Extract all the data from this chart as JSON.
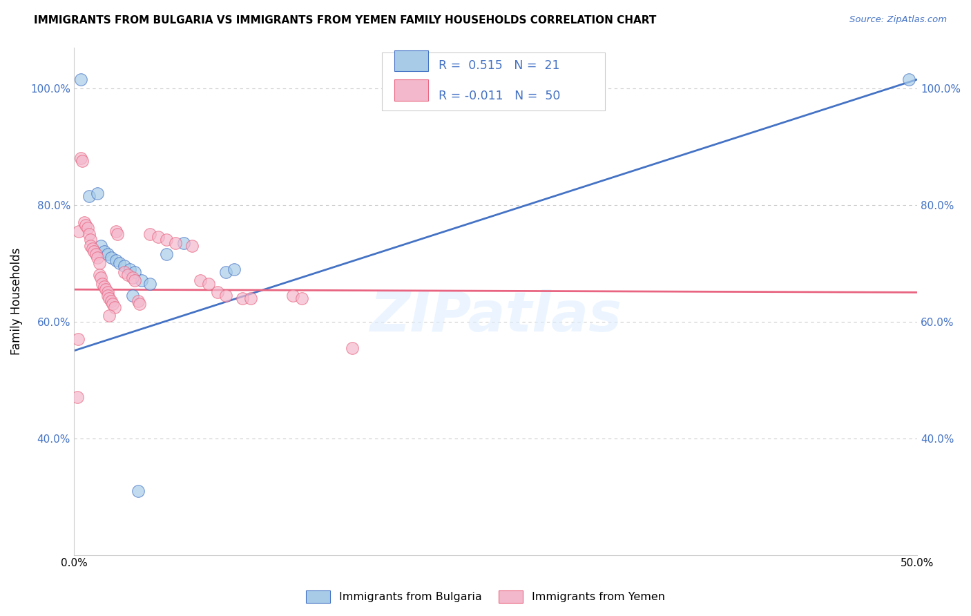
{
  "title": "IMMIGRANTS FROM BULGARIA VS IMMIGRANTS FROM YEMEN FAMILY HOUSEHOLDS CORRELATION CHART",
  "source": "Source: ZipAtlas.com",
  "ylabel": "Family Households",
  "xlim": [
    0.0,
    50.0
  ],
  "ylim": [
    20.0,
    107.0
  ],
  "yticks": [
    40.0,
    60.0,
    80.0,
    100.0
  ],
  "ytick_labels": [
    "40.0%",
    "60.0%",
    "80.0%",
    "100.0%"
  ],
  "xticks": [
    0.0,
    10.0,
    20.0,
    30.0,
    40.0,
    50.0
  ],
  "xtick_labels": [
    "0.0%",
    "",
    "",
    "",
    "",
    "50.0%"
  ],
  "color_bulgaria": "#a8cce8",
  "color_yemen": "#f4b8cc",
  "color_blue_line": "#4472c4",
  "color_pink_line": "#e86480",
  "watermark": "ZIPatlas",
  "background_color": "#ffffff",
  "blue_line": [
    0.0,
    55.0,
    50.0,
    101.5
  ],
  "pink_line": [
    0.0,
    65.5,
    50.0,
    65.0
  ],
  "bulgaria_points": [
    [
      0.4,
      101.5
    ],
    [
      0.9,
      81.5
    ],
    [
      1.4,
      82.0
    ],
    [
      1.6,
      73.0
    ],
    [
      1.8,
      72.0
    ],
    [
      2.0,
      71.5
    ],
    [
      2.2,
      71.0
    ],
    [
      2.5,
      70.5
    ],
    [
      2.7,
      70.0
    ],
    [
      3.0,
      69.5
    ],
    [
      3.3,
      69.0
    ],
    [
      3.6,
      68.5
    ],
    [
      4.0,
      67.0
    ],
    [
      4.5,
      66.5
    ],
    [
      5.5,
      71.5
    ],
    [
      6.5,
      73.5
    ],
    [
      9.0,
      68.5
    ],
    [
      9.5,
      69.0
    ],
    [
      3.5,
      64.5
    ],
    [
      3.8,
      31.0
    ],
    [
      49.5,
      101.5
    ]
  ],
  "yemen_points": [
    [
      0.2,
      47.0
    ],
    [
      0.3,
      75.5
    ],
    [
      0.4,
      88.0
    ],
    [
      0.5,
      87.5
    ],
    [
      0.6,
      77.0
    ],
    [
      0.7,
      76.5
    ],
    [
      0.8,
      76.0
    ],
    [
      0.9,
      75.0
    ],
    [
      1.0,
      74.0
    ],
    [
      1.0,
      73.0
    ],
    [
      1.1,
      72.5
    ],
    [
      1.2,
      72.0
    ],
    [
      1.3,
      71.5
    ],
    [
      1.4,
      71.0
    ],
    [
      1.5,
      70.0
    ],
    [
      1.5,
      68.0
    ],
    [
      1.6,
      67.5
    ],
    [
      1.7,
      66.5
    ],
    [
      1.8,
      66.0
    ],
    [
      1.9,
      65.5
    ],
    [
      2.0,
      65.0
    ],
    [
      2.0,
      64.5
    ],
    [
      2.1,
      64.0
    ],
    [
      2.2,
      63.5
    ],
    [
      2.3,
      63.0
    ],
    [
      2.4,
      62.5
    ],
    [
      2.5,
      75.5
    ],
    [
      2.6,
      75.0
    ],
    [
      3.0,
      68.5
    ],
    [
      3.2,
      68.0
    ],
    [
      3.5,
      67.5
    ],
    [
      3.6,
      67.0
    ],
    [
      3.8,
      63.5
    ],
    [
      3.9,
      63.0
    ],
    [
      4.5,
      75.0
    ],
    [
      5.0,
      74.5
    ],
    [
      5.5,
      74.0
    ],
    [
      6.0,
      73.5
    ],
    [
      7.0,
      73.0
    ],
    [
      7.5,
      67.0
    ],
    [
      8.0,
      66.5
    ],
    [
      8.5,
      65.0
    ],
    [
      9.0,
      64.5
    ],
    [
      10.0,
      64.0
    ],
    [
      10.5,
      64.0
    ],
    [
      13.0,
      64.5
    ],
    [
      13.5,
      64.0
    ],
    [
      16.5,
      55.5
    ],
    [
      0.25,
      57.0
    ],
    [
      2.1,
      61.0
    ]
  ],
  "legend_text1": "R =  0.515   N =  21",
  "legend_text2": "R = -0.011   N =  50",
  "bottom_label1": "Immigrants from Bulgaria",
  "bottom_label2": "Immigrants from Yemen"
}
